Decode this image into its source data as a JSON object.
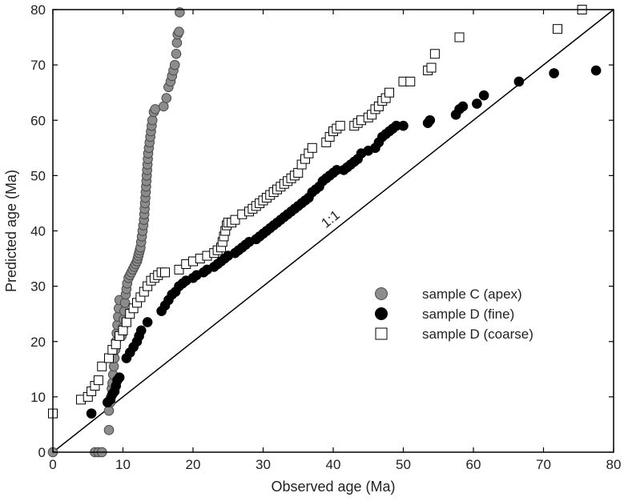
{
  "chart_data": {
    "type": "scatter",
    "xlabel": "Observed age (Ma)",
    "ylabel": "Predicted age (Ma)",
    "xlim": [
      0,
      80
    ],
    "ylim": [
      0,
      80
    ],
    "xticks": [
      "0",
      "10",
      "20",
      "30",
      "40",
      "50",
      "60",
      "70",
      "80"
    ],
    "yticks": [
      "0",
      "10",
      "20",
      "30",
      "40",
      "50",
      "60",
      "70",
      "80"
    ],
    "grid": false,
    "legend_position": "right-middle",
    "reference_line": {
      "label": "1:1",
      "from": [
        0,
        0
      ],
      "to": [
        80,
        80
      ]
    },
    "series": [
      {
        "name": "sample C (apex)",
        "marker": "circle",
        "fill": "#8c8c8c",
        "stroke": "#4a4a4a",
        "points": [
          [
            0,
            0
          ],
          [
            6,
            0
          ],
          [
            6.5,
            0
          ],
          [
            7,
            0
          ],
          [
            8,
            4
          ],
          [
            8,
            7.5
          ],
          [
            8.2,
            9
          ],
          [
            8.3,
            10
          ],
          [
            8.4,
            11.5
          ],
          [
            8.5,
            12.5
          ],
          [
            8.6,
            14
          ],
          [
            8.7,
            15.5
          ],
          [
            8.8,
            17
          ],
          [
            8.9,
            18.5
          ],
          [
            9,
            20
          ],
          [
            9.1,
            21.5
          ],
          [
            9.2,
            23
          ],
          [
            9.3,
            24.5
          ],
          [
            9.4,
            26
          ],
          [
            9.5,
            27.5
          ],
          [
            9.8,
            21
          ],
          [
            10,
            22.5
          ],
          [
            10.1,
            24
          ],
          [
            10.2,
            25.5
          ],
          [
            10.3,
            27
          ],
          [
            10.4,
            28.5
          ],
          [
            10.5,
            29.5
          ],
          [
            10.6,
            30.5
          ],
          [
            10.8,
            31.5
          ],
          [
            11,
            32
          ],
          [
            11.2,
            32.5
          ],
          [
            11.4,
            33
          ],
          [
            11.6,
            33.5
          ],
          [
            11.8,
            34
          ],
          [
            12,
            34.5
          ],
          [
            12.1,
            35
          ],
          [
            12.2,
            35.5
          ],
          [
            12.3,
            36
          ],
          [
            12.4,
            36.5
          ],
          [
            12.5,
            37
          ],
          [
            12.6,
            38
          ],
          [
            12.7,
            39
          ],
          [
            12.8,
            40
          ],
          [
            12.9,
            41
          ],
          [
            13,
            42
          ],
          [
            13.05,
            43
          ],
          [
            13.1,
            44
          ],
          [
            13.15,
            45
          ],
          [
            13.2,
            46
          ],
          [
            13.25,
            47
          ],
          [
            13.3,
            48
          ],
          [
            13.35,
            49
          ],
          [
            13.4,
            50
          ],
          [
            13.45,
            51
          ],
          [
            13.5,
            52
          ],
          [
            13.55,
            53
          ],
          [
            13.6,
            54
          ],
          [
            13.7,
            55
          ],
          [
            13.8,
            56
          ],
          [
            13.9,
            57
          ],
          [
            14,
            58
          ],
          [
            14.1,
            59
          ],
          [
            14.2,
            60
          ],
          [
            14.4,
            61.5
          ],
          [
            14.6,
            62
          ],
          [
            15.8,
            62.5
          ],
          [
            16.2,
            64
          ],
          [
            16.5,
            66
          ],
          [
            16.8,
            67
          ],
          [
            17,
            68
          ],
          [
            17.2,
            69
          ],
          [
            17.4,
            70
          ],
          [
            17.6,
            72
          ],
          [
            17.7,
            74
          ],
          [
            17.8,
            75.5
          ],
          [
            18,
            76
          ],
          [
            18.1,
            79.5
          ]
        ]
      },
      {
        "name": "sample D (fine)",
        "marker": "circle",
        "fill": "#000000",
        "stroke": "#000000",
        "points": [
          [
            5.5,
            7
          ],
          [
            7.8,
            9
          ],
          [
            8.2,
            9.5
          ],
          [
            8.5,
            10.5
          ],
          [
            8.8,
            11
          ],
          [
            9,
            12
          ],
          [
            9.2,
            13
          ],
          [
            9.5,
            13.5
          ],
          [
            10.5,
            17
          ],
          [
            11,
            18
          ],
          [
            11.5,
            19
          ],
          [
            12,
            20
          ],
          [
            12.3,
            21
          ],
          [
            12.6,
            22
          ],
          [
            13.5,
            23.5
          ],
          [
            15.5,
            25.5
          ],
          [
            16,
            26.5
          ],
          [
            16.5,
            27.5
          ],
          [
            17,
            28.5
          ],
          [
            17.5,
            29
          ],
          [
            18,
            30
          ],
          [
            18.5,
            30.5
          ],
          [
            19,
            31
          ],
          [
            20,
            31.5
          ],
          [
            20.5,
            32
          ],
          [
            21.5,
            32.5
          ],
          [
            22,
            33
          ],
          [
            23,
            33.5
          ],
          [
            23.5,
            34
          ],
          [
            24,
            34.5
          ],
          [
            24.5,
            35
          ],
          [
            25,
            35.5
          ],
          [
            26,
            36
          ],
          [
            26.5,
            36.5
          ],
          [
            27,
            37
          ],
          [
            27.5,
            37.5
          ],
          [
            28,
            38
          ],
          [
            29,
            38.5
          ],
          [
            29.5,
            39
          ],
          [
            30,
            39.5
          ],
          [
            30.5,
            40
          ],
          [
            31,
            40.5
          ],
          [
            31.5,
            41
          ],
          [
            32,
            41.5
          ],
          [
            32.5,
            42
          ],
          [
            33,
            42.5
          ],
          [
            33.5,
            43
          ],
          [
            34,
            43.5
          ],
          [
            34.5,
            44
          ],
          [
            35,
            44.5
          ],
          [
            35.5,
            45
          ],
          [
            36,
            45.5
          ],
          [
            36.5,
            46
          ],
          [
            37,
            47
          ],
          [
            37.5,
            47.5
          ],
          [
            38,
            48
          ],
          [
            38.5,
            49
          ],
          [
            39,
            49.5
          ],
          [
            39.5,
            50
          ],
          [
            40,
            50.5
          ],
          [
            40.5,
            51
          ],
          [
            41.5,
            51
          ],
          [
            42,
            51.5
          ],
          [
            42.5,
            52
          ],
          [
            43,
            52.5
          ],
          [
            43.5,
            53
          ],
          [
            44,
            54
          ],
          [
            45,
            54.5
          ],
          [
            46,
            55
          ],
          [
            46.5,
            56
          ],
          [
            47,
            57
          ],
          [
            47.5,
            57.5
          ],
          [
            48,
            58
          ],
          [
            48.5,
            58.5
          ],
          [
            49,
            59
          ],
          [
            50,
            59
          ],
          [
            53.5,
            59.5
          ],
          [
            53.8,
            60
          ],
          [
            57.5,
            61
          ],
          [
            58,
            62
          ],
          [
            58.5,
            62.5
          ],
          [
            60.5,
            63
          ],
          [
            61.5,
            64.5
          ],
          [
            66.5,
            67
          ],
          [
            71.5,
            68.5
          ],
          [
            77.5,
            69
          ]
        ]
      },
      {
        "name": "sample D (coarse)",
        "marker": "square",
        "fill": "#ffffff",
        "stroke": "#000000",
        "points": [
          [
            0,
            7
          ],
          [
            4,
            9.5
          ],
          [
            5,
            10
          ],
          [
            5.5,
            11
          ],
          [
            6,
            12
          ],
          [
            6.5,
            13
          ],
          [
            7,
            15.5
          ],
          [
            8,
            17
          ],
          [
            8.5,
            18.5
          ],
          [
            9,
            19.5
          ],
          [
            9.5,
            21
          ],
          [
            10,
            22
          ],
          [
            10.5,
            23.5
          ],
          [
            11,
            25
          ],
          [
            11.5,
            26
          ],
          [
            12,
            27
          ],
          [
            12.5,
            28
          ],
          [
            13,
            29
          ],
          [
            13.5,
            30
          ],
          [
            14,
            31
          ],
          [
            14.5,
            31.5
          ],
          [
            15,
            32
          ],
          [
            15.5,
            32.5
          ],
          [
            16,
            32.5
          ],
          [
            18,
            33
          ],
          [
            19,
            34
          ],
          [
            20,
            34.5
          ],
          [
            21,
            35
          ],
          [
            22,
            35.5
          ],
          [
            23,
            36
          ],
          [
            23.5,
            36.5
          ],
          [
            24,
            37
          ],
          [
            24.2,
            38
          ],
          [
            24.4,
            39
          ],
          [
            24.6,
            40
          ],
          [
            24.8,
            41
          ],
          [
            25,
            41.5
          ],
          [
            25.5,
            41.5
          ],
          [
            26,
            42
          ],
          [
            27,
            43
          ],
          [
            28,
            43.5
          ],
          [
            28.5,
            44
          ],
          [
            29,
            44.5
          ],
          [
            29.5,
            45
          ],
          [
            30,
            45.5
          ],
          [
            30.5,
            46
          ],
          [
            31,
            46.5
          ],
          [
            31.5,
            47
          ],
          [
            32,
            47.5
          ],
          [
            32.5,
            48
          ],
          [
            33,
            48.5
          ],
          [
            33.5,
            49
          ],
          [
            34,
            49.5
          ],
          [
            34.5,
            50
          ],
          [
            35,
            50.5
          ],
          [
            35.5,
            52
          ],
          [
            36,
            53
          ],
          [
            36.5,
            54
          ],
          [
            37,
            55
          ],
          [
            39,
            56
          ],
          [
            39.5,
            57
          ],
          [
            40,
            58
          ],
          [
            40.5,
            58.5
          ],
          [
            41,
            59
          ],
          [
            43,
            59
          ],
          [
            43.5,
            59.5
          ],
          [
            44,
            60
          ],
          [
            45,
            60.5
          ],
          [
            45.5,
            61
          ],
          [
            46,
            62
          ],
          [
            46.5,
            62.5
          ],
          [
            47,
            63.5
          ],
          [
            47.5,
            64
          ],
          [
            48,
            65
          ],
          [
            50,
            67
          ],
          [
            51,
            67
          ],
          [
            53.5,
            69
          ],
          [
            54,
            69.5
          ],
          [
            54.5,
            72
          ],
          [
            58,
            75
          ],
          [
            72,
            76.5
          ],
          [
            75.5,
            80
          ]
        ]
      }
    ]
  }
}
